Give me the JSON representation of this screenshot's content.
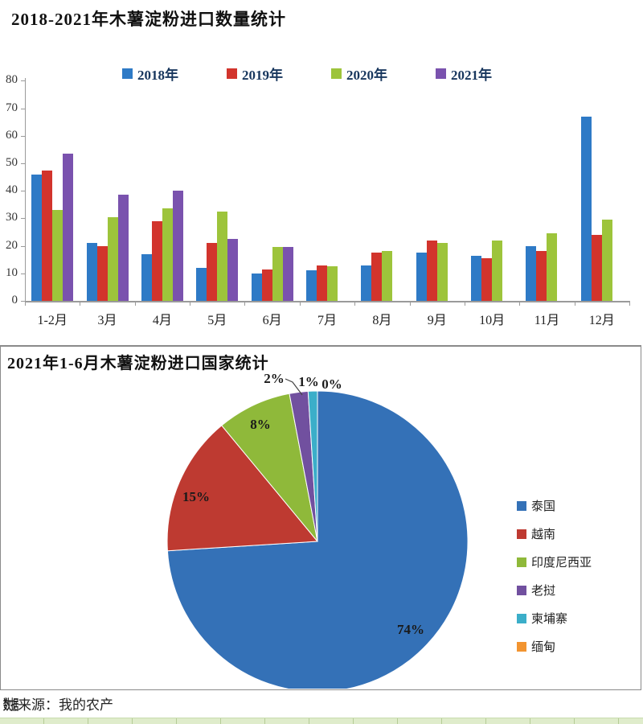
{
  "chart_data": [
    {
      "type": "bar",
      "title": "2018-2021年木薯淀粉进口数量统计",
      "categories": [
        "1-2月",
        "3月",
        "4月",
        "5月",
        "6月",
        "7月",
        "8月",
        "9月",
        "10月",
        "11月",
        "12月"
      ],
      "series": [
        {
          "name": "2018年",
          "color": "#2E7AC6",
          "values": [
            46,
            21,
            17,
            12,
            10,
            11,
            13,
            17.5,
            16.5,
            20,
            67
          ]
        },
        {
          "name": "2019年",
          "color": "#D2342C",
          "values": [
            47.5,
            20,
            29,
            21,
            11.5,
            13,
            17.5,
            22,
            15.5,
            18,
            24
          ]
        },
        {
          "name": "2020年",
          "color": "#9DC43B",
          "values": [
            33,
            30.5,
            33.5,
            32.5,
            19.5,
            12.5,
            18,
            21,
            22,
            24.5,
            29.5
          ]
        },
        {
          "name": "2021年",
          "color": "#7A52AE",
          "values": [
            53.5,
            38.5,
            40,
            22.5,
            19.5,
            null,
            null,
            null,
            null,
            null,
            null
          ]
        }
      ],
      "ylim": [
        0,
        80
      ],
      "ytick_step": 10,
      "grid": false,
      "legend_position": "top"
    },
    {
      "type": "pie",
      "title": "2021年1-6月木薯淀粉进口国家统计",
      "labels": [
        "泰国",
        "越南",
        "印度尼西亚",
        "老挝",
        "柬埔寨",
        "缅甸"
      ],
      "values": [
        74,
        15,
        8,
        2,
        1,
        0
      ],
      "pct_labels": [
        "74%",
        "15%",
        "8%",
        "2%",
        "1%",
        "0%"
      ],
      "colors": [
        "#3471B7",
        "#BE3A31",
        "#8FB93A",
        "#71509F",
        "#3BAEC9",
        "#F29430"
      ],
      "legend_position": "right",
      "start_angle_deg": 0,
      "direction": "clockwise"
    }
  ],
  "source": {
    "prefix": "数据",
    "text": "来源：我的农产"
  }
}
